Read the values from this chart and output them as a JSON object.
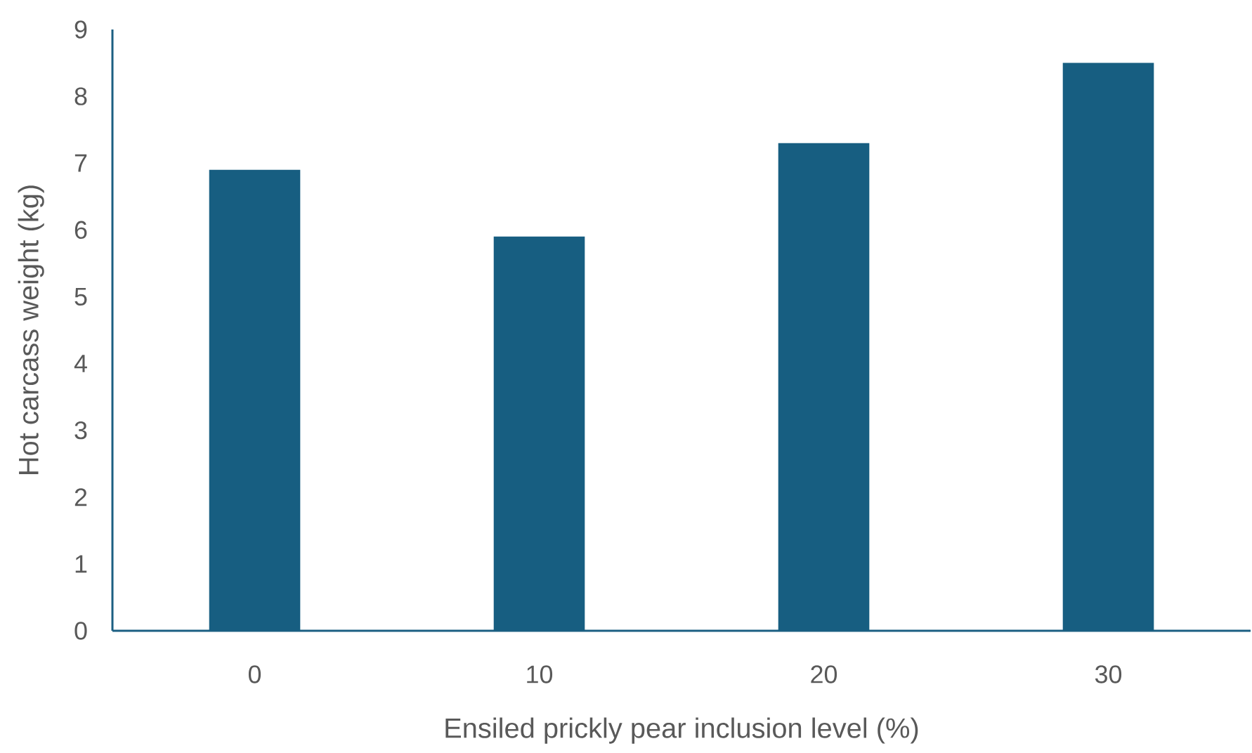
{
  "chart_data": {
    "type": "bar",
    "xlabel": "Ensiled prickly pear inclusion level (%)",
    "ylabel": "Hot carcass weight (kg)",
    "categories": [
      "0",
      "10",
      "20",
      "30"
    ],
    "values": [
      6.9,
      5.9,
      7.3,
      8.5
    ],
    "color": "#175e81",
    "ylim": [
      0,
      9
    ],
    "yticks": [
      0,
      1,
      2,
      3,
      4,
      5,
      6,
      7,
      8,
      9
    ]
  }
}
